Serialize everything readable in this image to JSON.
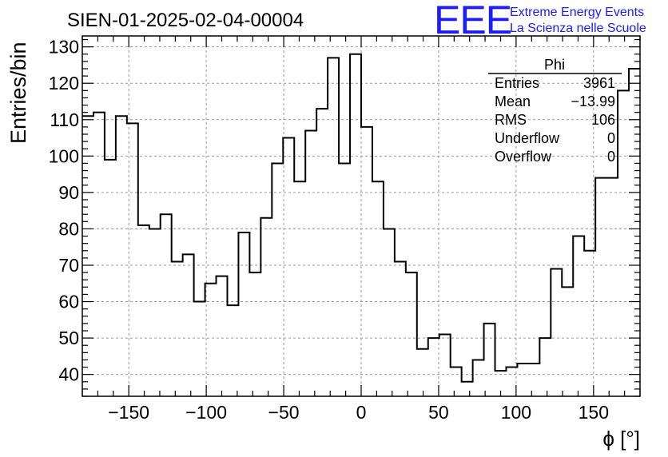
{
  "brand": {
    "logo": "EEE",
    "line1": "Extreme Energy Events",
    "line2": "La Scienza nelle Scuole",
    "color": "#1c1cff"
  },
  "stats": {
    "title": "Phi",
    "rows": [
      {
        "label": "Entries",
        "value": "3961"
      },
      {
        "label": "Mean",
        "value": "−13.99"
      },
      {
        "label": "RMS",
        "value": "106"
      },
      {
        "label": "Underflow",
        "value": "0"
      },
      {
        "label": "Overflow",
        "value": "0"
      }
    ]
  },
  "chart_data": {
    "type": "histogram",
    "title": "SIEN-01-2025-02-04-00004",
    "xlabel": "ϕ [°]",
    "ylabel": "Entries/bin",
    "xlim": [
      -180,
      180
    ],
    "ylim": [
      34,
      133
    ],
    "grid": true,
    "bin_width": 7.2,
    "x_ticks": [
      -150,
      -100,
      -50,
      0,
      50,
      100,
      150
    ],
    "x_tick_labels": [
      "−150",
      "−100",
      "−50",
      "0",
      "50",
      "100",
      "150"
    ],
    "y_ticks": [
      40,
      50,
      60,
      70,
      80,
      90,
      100,
      110,
      120,
      130
    ],
    "y_tick_labels": [
      "40",
      "50",
      "60",
      "70",
      "80",
      "90",
      "100",
      "110",
      "120",
      "130"
    ],
    "values": [
      111,
      112,
      99,
      111,
      109,
      81,
      80,
      84,
      71,
      73,
      60,
      65,
      67,
      59,
      79,
      68,
      83,
      98,
      105,
      93,
      107,
      113,
      127,
      98,
      128,
      108,
      93,
      80,
      71,
      68,
      47,
      50,
      51,
      42,
      38,
      44,
      54,
      41,
      42,
      43,
      43,
      50,
      69,
      64,
      78,
      74,
      94,
      94,
      118,
      124
    ]
  }
}
